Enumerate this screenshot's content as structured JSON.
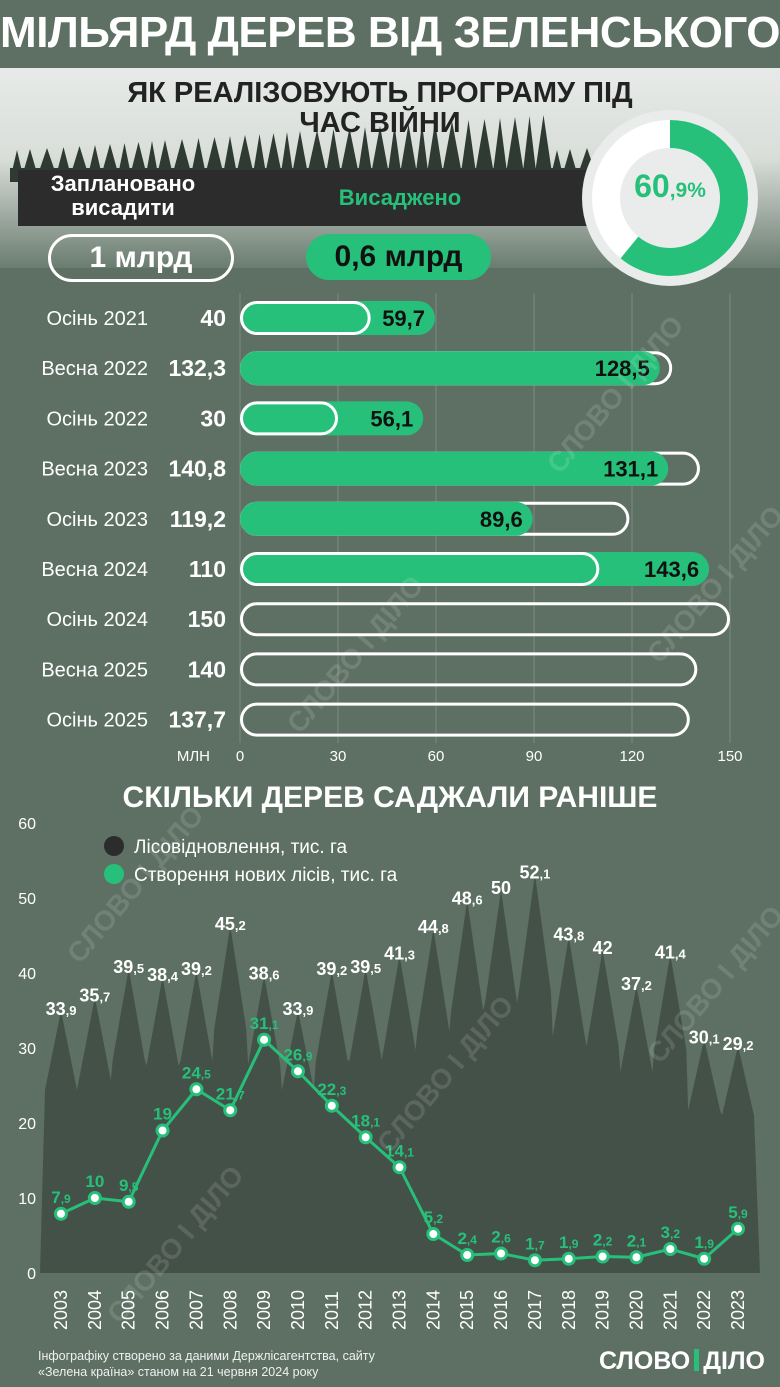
{
  "title": "МІЛЬЯРД ДЕРЕВ ВІД ЗЕЛЕНСЬКОГО",
  "subtitle": "ЯК РЕАЛІЗОВУЮТЬ ПРОГРАМУ ПІД ЧАС ВІЙНИ",
  "legend": {
    "planned": "Заплановано висадити",
    "planted": "Висаджено"
  },
  "totals": {
    "planned": "1 млрд",
    "planted": "0,6 млрд"
  },
  "progress": {
    "value": 60.9,
    "int_label": "60",
    "frac_label": ",9%"
  },
  "watermark": "СЛОВО І ДІЛО",
  "colors": {
    "green": "#27c07a",
    "background": "#5d7063",
    "dark": "#2c2c2c"
  },
  "chart_data": [
    {
      "type": "bar",
      "orientation": "horizontal",
      "title": "",
      "xlabel": "МЛН",
      "xlim": [
        0,
        150
      ],
      "xticks": [
        0,
        30,
        60,
        90,
        120,
        150
      ],
      "categories": [
        "Осінь 2021",
        "Весна 2022",
        "Осінь 2022",
        "Весна 2023",
        "Осінь 2023",
        "Весна 2024",
        "Осінь 2024",
        "Весна 2025",
        "Осінь 2025"
      ],
      "series": [
        {
          "name": "Заплановано висадити",
          "values": [
            40,
            132.3,
            30,
            140.8,
            119.2,
            110,
            150,
            140,
            137.7
          ],
          "labels": [
            "40",
            "132,3",
            "30",
            "140,8",
            "119,2",
            "110",
            "150",
            "140",
            "137,7"
          ]
        },
        {
          "name": "Висаджено",
          "values": [
            59.7,
            128.5,
            56.1,
            131.1,
            89.6,
            143.6,
            null,
            null,
            null
          ],
          "labels": [
            "59,7",
            "128,5",
            "56,1",
            "131,1",
            "89,6",
            "143,6",
            "",
            "",
            ""
          ]
        }
      ]
    },
    {
      "type": "line",
      "title": "СКІЛЬКИ ДЕРЕВ САДЖАЛИ РАНІШЕ",
      "ylim": [
        0,
        60
      ],
      "yticks": [
        0,
        10,
        20,
        30,
        40,
        50,
        60
      ],
      "x": [
        "2003",
        "2004",
        "2005",
        "2006",
        "2007",
        "2008",
        "2009",
        "2010",
        "2011",
        "2012",
        "2013",
        "2014",
        "2015",
        "2016",
        "2017",
        "2018",
        "2019",
        "2020",
        "2021",
        "2022",
        "2023"
      ],
      "series": [
        {
          "name": "Лісовідновлення, тис. га",
          "values": [
            33.9,
            35.7,
            39.5,
            38.4,
            39.2,
            45.2,
            38.6,
            33.9,
            39.2,
            39.5,
            41.3,
            44.8,
            48.6,
            50,
            52.1,
            43.8,
            42,
            37.2,
            41.4,
            30.1,
            29.2
          ],
          "labels": [
            [
              "33",
              ",9"
            ],
            [
              "35",
              ",7"
            ],
            [
              "39",
              ",5"
            ],
            [
              "38",
              ",4"
            ],
            [
              "39",
              ",2"
            ],
            [
              "45",
              ",2"
            ],
            [
              "38",
              ",6"
            ],
            [
              "33",
              ",9"
            ],
            [
              "39",
              ",2"
            ],
            [
              "39",
              ",5"
            ],
            [
              "41",
              ",3"
            ],
            [
              "44",
              ",8"
            ],
            [
              "48",
              ",6"
            ],
            [
              "50",
              ""
            ],
            [
              "52",
              ",1"
            ],
            [
              "43",
              ",8"
            ],
            [
              "42",
              ""
            ],
            [
              "37",
              ",2"
            ],
            [
              "41",
              ",4"
            ],
            [
              "30",
              ",1"
            ],
            [
              "29",
              ",2"
            ]
          ]
        },
        {
          "name": "Створення нових лісів, тис. га",
          "values": [
            7.9,
            10,
            9.5,
            19,
            24.5,
            21.7,
            31.1,
            26.9,
            22.3,
            18.1,
            14.1,
            5.2,
            2.4,
            2.6,
            1.7,
            1.9,
            2.2,
            2.1,
            3.2,
            1.9,
            5.9
          ],
          "labels": [
            [
              "7",
              ",9"
            ],
            [
              "10",
              ""
            ],
            [
              "9",
              ",5"
            ],
            [
              "19",
              ""
            ],
            [
              "24",
              ",5"
            ],
            [
              "21",
              ",7"
            ],
            [
              "31",
              ",1"
            ],
            [
              "26",
              ",9"
            ],
            [
              "22",
              ",3"
            ],
            [
              "18",
              ",1"
            ],
            [
              "14",
              ",1"
            ],
            [
              "5",
              ",2"
            ],
            [
              "2",
              ",4"
            ],
            [
              "2",
              ",6"
            ],
            [
              "1",
              ",7"
            ],
            [
              "1",
              ",9"
            ],
            [
              "2",
              ",2"
            ],
            [
              "2",
              ",1"
            ],
            [
              "3",
              ",2"
            ],
            [
              "1",
              ",9"
            ],
            [
              "5",
              ",9"
            ]
          ]
        }
      ]
    }
  ],
  "footer": {
    "source_line1": "Інфографіку створено за даними Держлісагентства, сайту",
    "source_line2": "«Зелена країна» станом на 21 червня 2024 року",
    "brand_left": "СЛОВО",
    "brand_right": "ДІЛО"
  }
}
